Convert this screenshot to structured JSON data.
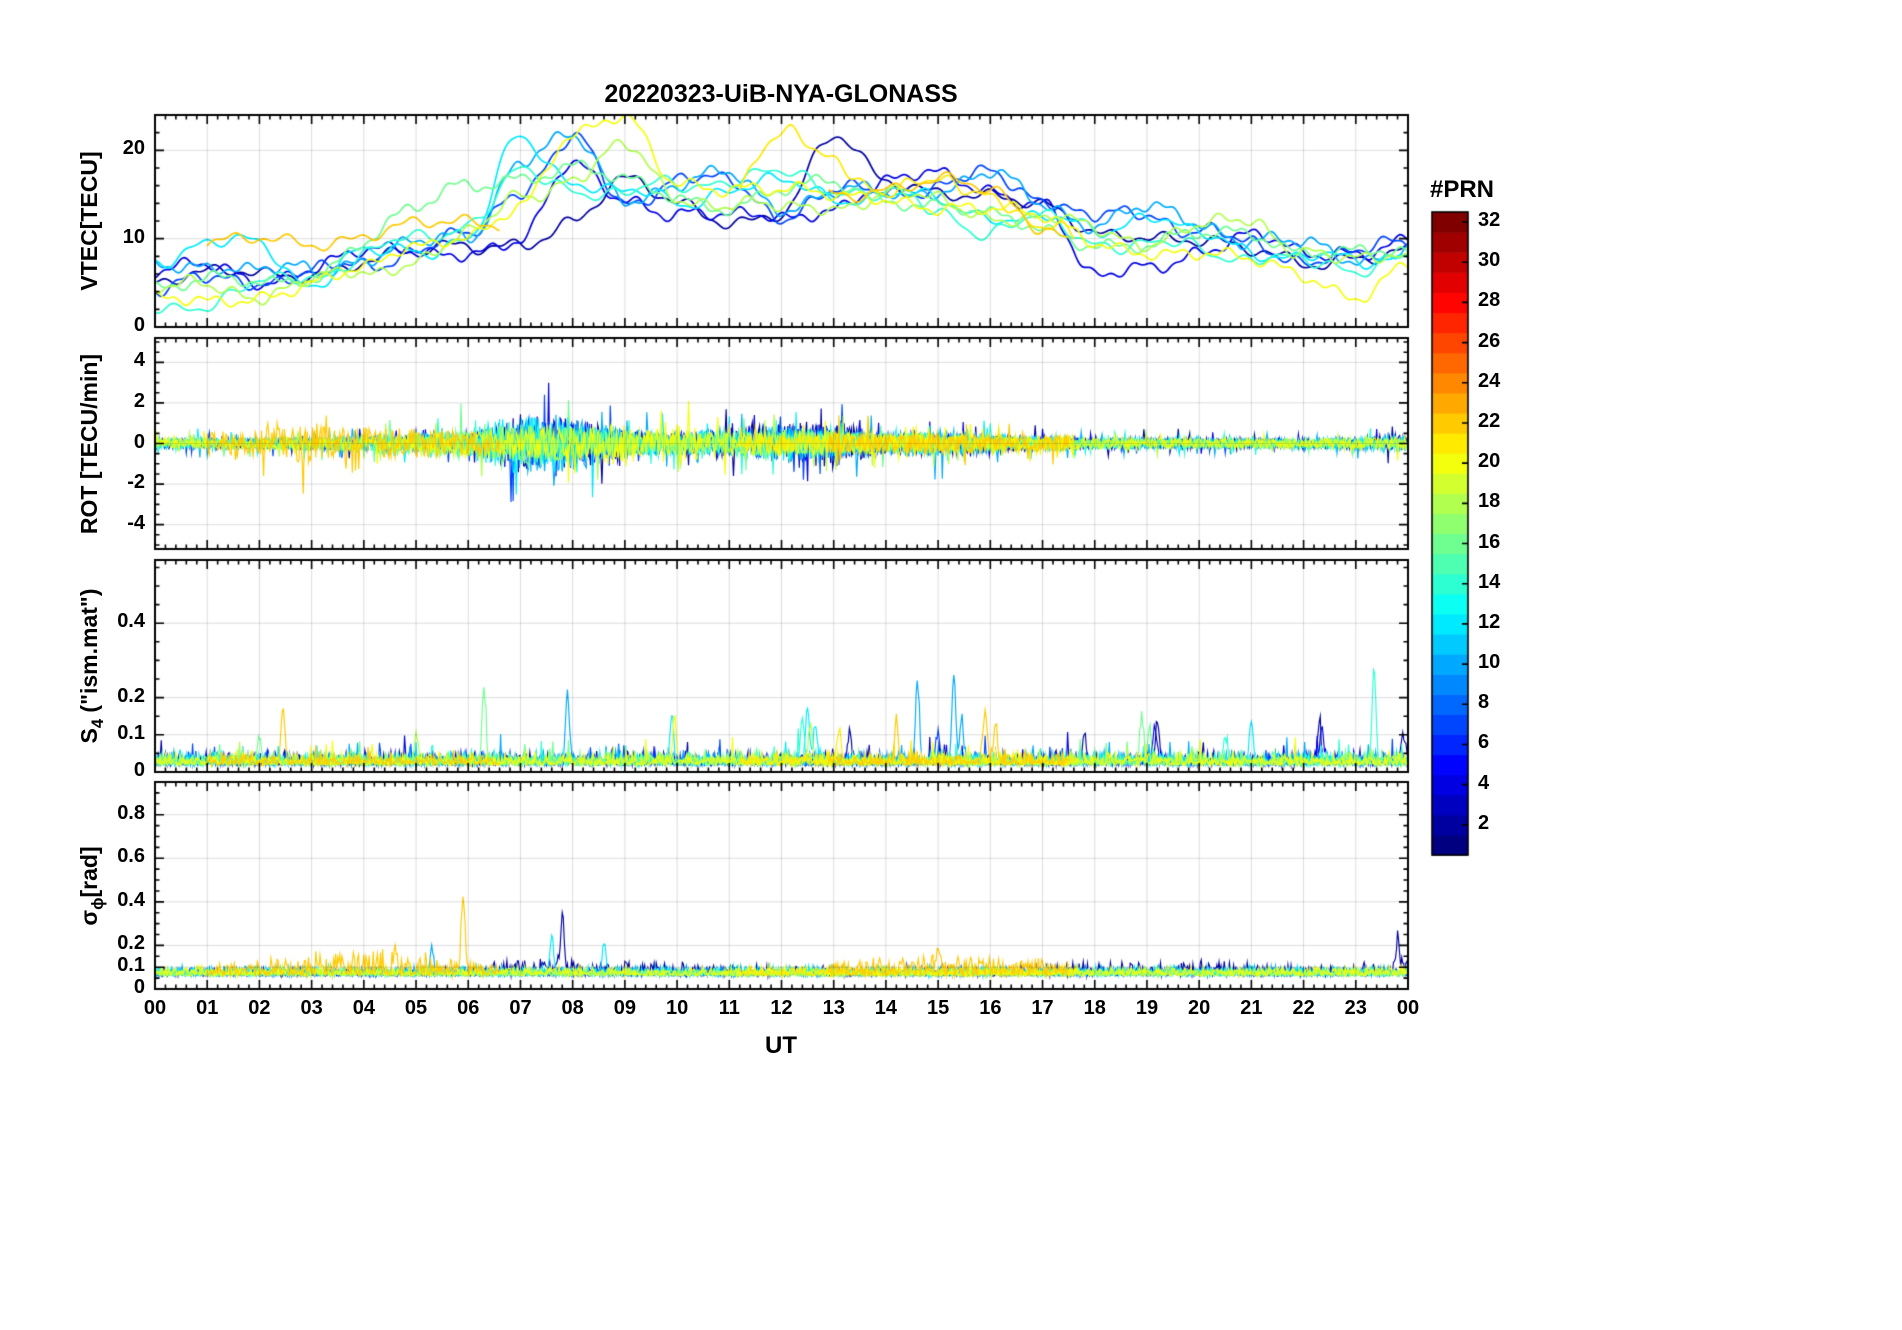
{
  "chart_data": {
    "type": "line",
    "title": "20220323-UiB-NYA-GLONASS",
    "xlabel": "UT",
    "xlim": [
      0,
      24
    ],
    "x_ticklabels": [
      "00",
      "01",
      "02",
      "03",
      "04",
      "05",
      "06",
      "07",
      "08",
      "09",
      "10",
      "11",
      "12",
      "13",
      "14",
      "15",
      "16",
      "17",
      "18",
      "19",
      "20",
      "21",
      "22",
      "23",
      "00"
    ],
    "grid": true,
    "colorbar": {
      "title": "#PRN",
      "colormap": "jet",
      "n_colors": 32,
      "range": [
        1,
        32
      ],
      "ticks": [
        2,
        4,
        6,
        8,
        10,
        12,
        14,
        16,
        18,
        20,
        22,
        24,
        26,
        28,
        30,
        32
      ]
    },
    "panels": [
      {
        "key": "vtec",
        "ylabel": {
          "main": "VTEC[TECU]",
          "sub": "",
          "rest": ""
        },
        "ylim": [
          0,
          24
        ],
        "yticks": [
          {
            "v": 0,
            "l": "0"
          },
          {
            "v": 10,
            "l": "10"
          },
          {
            "v": 20,
            "l": "20"
          }
        ],
        "minor": 2
      },
      {
        "key": "rot",
        "ylabel": {
          "main": "ROT [TECU/min]",
          "sub": "",
          "rest": ""
        },
        "ylim": [
          -5.2,
          5.2
        ],
        "yticks": [
          {
            "v": -4,
            "l": "-4"
          },
          {
            "v": -2,
            "l": "-2"
          },
          {
            "v": 0,
            "l": "0"
          },
          {
            "v": 2,
            "l": "2"
          },
          {
            "v": 4,
            "l": "4"
          }
        ],
        "minor": 0.5
      },
      {
        "key": "s4",
        "ylabel": {
          "main": "S",
          "sub": "4",
          "rest": " (\"ism.mat\")"
        },
        "ylim": [
          0,
          0.57
        ],
        "yticks": [
          {
            "v": 0,
            "l": "0"
          },
          {
            "v": 0.1,
            "l": "0.1"
          },
          {
            "v": 0.2,
            "l": "0.2"
          },
          {
            "v": 0.4,
            "l": "0.4"
          }
        ],
        "minor": 0.05,
        "base": 0.018,
        "amp": 0.035
      },
      {
        "key": "sigma_phi",
        "ylabel": {
          "main": "σ",
          "sub": "ϕ",
          "rest": "[rad]"
        },
        "ylim": [
          0,
          0.95
        ],
        "yticks": [
          {
            "v": 0,
            "l": "0"
          },
          {
            "v": 0.1,
            "l": "0.1"
          },
          {
            "v": 0.2,
            "l": "0.2"
          },
          {
            "v": 0.4,
            "l": "0.4"
          },
          {
            "v": 0.6,
            "l": "0.6"
          },
          {
            "v": 0.8,
            "l": "0.8"
          }
        ],
        "minor": 0.05,
        "base": 0.06
      }
    ],
    "x_hours": [
      0,
      1,
      2,
      3,
      4,
      5,
      6,
      7,
      8,
      9,
      10,
      11,
      12,
      13,
      14,
      15,
      16,
      17,
      18,
      19,
      20,
      21,
      22,
      23,
      24
    ],
    "series": [
      {
        "prn": 2,
        "segments": [
          [
            0,
            24
          ]
        ],
        "vtec": [
          5,
          5.5,
          6,
          6.5,
          7.5,
          8,
          9,
          10,
          12,
          16,
          14,
          12.5,
          13,
          21,
          16.5,
          16,
          15,
          13,
          10.5,
          11,
          10,
          8,
          7,
          8.5,
          9
        ],
        "rot_env": [
          0.4,
          0.4,
          0.4,
          0.5,
          0.5,
          0.6,
          0.7,
          2.6,
          2.2,
          1.2,
          1.0,
          1.2,
          1.8,
          2.2,
          0.9,
          1.0,
          0.8,
          0.6,
          0.4,
          0.5,
          0.5,
          0.4,
          0.4,
          0.5,
          0.8
        ],
        "s4_spikes": [
          [
            13.3,
            0.07
          ],
          [
            17.8,
            0.08
          ],
          [
            19.2,
            0.11
          ],
          [
            22.3,
            0.1
          ],
          [
            23.9,
            0.08
          ]
        ],
        "sp_amp": [
          0.04,
          0.04,
          0.04,
          0.04,
          0.04,
          0.04,
          0.05,
          0.1,
          0.09,
          0.08,
          0.08,
          0.06,
          0.05,
          0.05,
          0.05,
          0.05,
          0.05,
          0.07,
          0.08,
          0.08,
          0.08,
          0.07,
          0.05,
          0.06,
          0.1
        ],
        "sp_spikes": [
          [
            7.8,
            0.25
          ],
          [
            23.8,
            0.12
          ]
        ]
      },
      {
        "prn": 4,
        "segments": [
          [
            0,
            24
          ]
        ],
        "vtec": [
          6,
          6.5,
          5.5,
          7,
          8,
          8.5,
          9,
          9.5,
          18,
          15,
          13,
          12,
          12.5,
          14,
          16,
          17,
          16,
          14,
          5,
          7,
          9,
          10,
          8,
          9,
          10
        ],
        "rot_env": [
          0.4,
          0.4,
          0.4,
          0.4,
          0.5,
          0.5,
          0.6,
          1.8,
          2.4,
          1.0,
          0.8,
          0.9,
          1.4,
          1.6,
          0.8,
          0.9,
          0.7,
          0.5,
          0.4,
          0.4,
          0.4,
          0.4,
          0.4,
          0.4,
          0.6
        ],
        "s4_spikes": [
          [
            19.15,
            0.1
          ],
          [
            22.35,
            0.09
          ]
        ],
        "sp_amp": 0.04,
        "sp_spikes": []
      },
      {
        "prn": 7,
        "segments": [
          [
            0,
            24
          ]
        ],
        "vtec": [
          4.5,
          5,
          5.5,
          6,
          7,
          9,
          10,
          16,
          21,
          14,
          17,
          16,
          13,
          15,
          15.5,
          16,
          17,
          15,
          12,
          13,
          11,
          9,
          8,
          8,
          10
        ],
        "rot_env": [
          0.4,
          0.4,
          0.4,
          0.5,
          0.6,
          0.7,
          0.9,
          2.2,
          2.0,
          1.0,
          0.9,
          1.0,
          1.3,
          1.4,
          0.8,
          0.8,
          0.7,
          0.5,
          0.4,
          0.4,
          0.4,
          0.4,
          0.4,
          0.4,
          0.5
        ],
        "s4_spikes": [
          [
            15.0,
            0.08
          ]
        ],
        "sp_amp": 0.04,
        "sp_spikes": []
      },
      {
        "prn": 10,
        "segments": [
          [
            0,
            24
          ]
        ],
        "vtec": [
          7,
          7.5,
          6,
          6.5,
          8,
          9,
          10.5,
          19,
          21,
          15,
          16,
          17,
          14,
          15,
          15,
          16,
          17,
          14,
          12,
          13,
          12,
          10,
          9,
          8,
          9
        ],
        "rot_env": [
          0.5,
          0.5,
          0.5,
          0.5,
          0.6,
          0.7,
          1.0,
          2.4,
          2.6,
          1.2,
          1.0,
          1.0,
          1.5,
          1.3,
          0.9,
          1.4,
          0.8,
          0.6,
          0.4,
          0.5,
          0.4,
          0.4,
          0.4,
          0.5,
          0.7
        ],
        "s4_spikes": [
          [
            7.9,
            0.18
          ],
          [
            14.6,
            0.2
          ],
          [
            15.3,
            0.24
          ],
          [
            15.45,
            0.12
          ]
        ],
        "sp_amp": 0.05,
        "sp_spikes": [
          [
            5.3,
            0.1
          ]
        ]
      },
      {
        "prn": 12,
        "segments": [
          [
            0,
            24
          ]
        ],
        "vtec": [
          8,
          9,
          9.5,
          5,
          8,
          9,
          10,
          21,
          17,
          15,
          14,
          16,
          16,
          15,
          15,
          14,
          13,
          12,
          11,
          13,
          10,
          9,
          8,
          7,
          8.5
        ],
        "rot_env": [
          0.5,
          0.5,
          0.5,
          0.5,
          0.6,
          0.8,
          1.2,
          2.8,
          2.2,
          1.1,
          1.0,
          1.1,
          1.6,
          1.2,
          0.9,
          1.0,
          0.8,
          0.6,
          0.4,
          0.5,
          0.4,
          0.4,
          0.4,
          0.5,
          0.8
        ],
        "s4_spikes": [
          [
            9.9,
            0.13
          ],
          [
            12.5,
            0.14
          ],
          [
            12.65,
            0.1
          ],
          [
            21.0,
            0.11
          ]
        ],
        "sp_amp": 0.05,
        "sp_spikes": [
          [
            7.6,
            0.17
          ],
          [
            8.6,
            0.14
          ]
        ]
      },
      {
        "prn": 14,
        "segments": [
          [
            0,
            24
          ]
        ],
        "vtec": [
          2,
          3,
          4.5,
          6,
          8,
          10,
          12,
          17,
          16,
          15,
          16,
          17,
          17,
          16,
          15,
          13,
          11,
          12,
          10,
          9,
          9,
          8,
          7,
          7,
          8
        ],
        "rot_env": [
          0.4,
          0.4,
          0.4,
          0.5,
          0.6,
          0.8,
          1.0,
          1.8,
          1.6,
          1.0,
          0.9,
          1.0,
          1.2,
          1.1,
          0.8,
          0.8,
          0.7,
          0.5,
          0.4,
          0.4,
          0.4,
          0.4,
          0.4,
          0.5,
          0.6
        ],
        "s4_spikes": [
          [
            12.4,
            0.12
          ],
          [
            20.5,
            0.07
          ],
          [
            23.35,
            0.25
          ]
        ],
        "sp_amp": 0.04,
        "sp_spikes": []
      },
      {
        "prn": 16,
        "segments": [
          [
            0,
            24
          ]
        ],
        "vtec": [
          5,
          5,
          4.5,
          6,
          10,
          13,
          16,
          17.5,
          18,
          16,
          15,
          14,
          15,
          16,
          15,
          14,
          12,
          11,
          10,
          9,
          10,
          11,
          9,
          8,
          8
        ],
        "rot_env": [
          0.4,
          0.4,
          0.5,
          0.6,
          0.8,
          1.0,
          1.4,
          2.4,
          1.4,
          0.9,
          0.8,
          0.9,
          1.1,
          1.0,
          0.8,
          0.8,
          0.6,
          0.5,
          0.4,
          0.4,
          0.4,
          0.4,
          0.4,
          0.4,
          0.5
        ],
        "s4_spikes": [
          [
            2.0,
            0.06
          ],
          [
            6.3,
            0.2
          ],
          [
            18.9,
            0.12
          ],
          [
            19.05,
            0.09
          ]
        ],
        "sp_amp": 0.04,
        "sp_spikes": []
      },
      {
        "prn": 18,
        "segments": [
          [
            0,
            24
          ]
        ],
        "vtec": [
          4,
          4.5,
          4,
          5,
          6,
          8,
          10,
          15,
          17,
          20,
          15,
          14,
          13,
          14,
          15,
          14,
          13,
          12,
          11,
          10,
          11,
          12,
          9,
          7,
          8
        ],
        "rot_env": [
          0.4,
          0.4,
          0.4,
          0.5,
          0.6,
          0.8,
          1.2,
          1.6,
          1.4,
          1.2,
          1.0,
          0.9,
          1.1,
          1.0,
          0.8,
          0.8,
          0.6,
          0.5,
          0.4,
          0.4,
          0.4,
          0.4,
          0.4,
          0.4,
          0.5
        ],
        "s4_spikes": [
          [
            5.0,
            0.07
          ],
          [
            12.55,
            0.1
          ]
        ],
        "sp_amp": 0.04,
        "sp_spikes": []
      },
      {
        "prn": 20,
        "segments": [
          [
            0,
            24
          ]
        ],
        "vtec": [
          2.5,
          3,
          4,
          5,
          6,
          9,
          11,
          14,
          21,
          23.5,
          17,
          16,
          15,
          14.5,
          15,
          14,
          13,
          12,
          10,
          9,
          8,
          7,
          6,
          4,
          7
        ],
        "rot_env": [
          0.5,
          0.5,
          0.5,
          0.6,
          0.7,
          0.9,
          1.1,
          1.4,
          1.3,
          2.0,
          1.8,
          1.0,
          1.2,
          1.0,
          0.9,
          0.8,
          0.7,
          0.6,
          0.5,
          0.5,
          0.4,
          0.4,
          0.4,
          0.5,
          0.6
        ],
        "s4_spikes": [
          [
            9.95,
            0.12
          ]
        ],
        "sp_amp": 0.05,
        "sp_spikes": []
      },
      {
        "prn": 21,
        "segments": [
          [
            11.2,
            17.6
          ]
        ],
        "vtec": [
          16,
          16,
          16,
          16,
          16,
          16,
          16,
          16,
          16,
          16,
          16,
          16,
          21.5,
          19,
          15.5,
          16,
          15.5,
          11,
          9,
          9,
          9,
          9,
          9,
          9,
          9
        ],
        "rot_env": [
          0.7,
          0.7,
          0.7,
          0.7,
          0.7,
          0.7,
          0.7,
          0.7,
          0.7,
          0.7,
          0.7,
          0.7,
          0.7,
          0.7,
          0.7,
          0.7,
          0.7,
          0.7,
          0.7,
          0.7,
          0.7,
          0.7,
          0.7,
          0.7,
          0.7
        ],
        "s4_spikes": [
          [
            13.1,
            0.08
          ]
        ],
        "sp_amp": 0.05,
        "sp_spikes": []
      },
      {
        "prn": 22,
        "segments": [
          [
            1.0,
            6.6
          ],
          [
            12.9,
            17.5
          ]
        ],
        "vtec": [
          8.5,
          9,
          9.5,
          10,
          10.5,
          11,
          12,
          12.5,
          13,
          13.5,
          14,
          14.5,
          15,
          15.5,
          16,
          16,
          15.5,
          12,
          8,
          8,
          8,
          8,
          8,
          8,
          8
        ],
        "rot_env": [
          1.0,
          1.0,
          1.1,
          1.8,
          1.4,
          1.3,
          1.0,
          0.8,
          0.8,
          0.8,
          0.8,
          0.8,
          1.0,
          1.0,
          0.9,
          0.9,
          0.8,
          0.7,
          0.7,
          0.7,
          0.7,
          0.7,
          0.7,
          0.7,
          0.7
        ],
        "s4_spikes": [
          [
            2.45,
            0.15
          ],
          [
            14.2,
            0.11
          ],
          [
            15.9,
            0.14
          ],
          [
            16.1,
            0.1
          ]
        ],
        "sp_amp": [
          0.05,
          0.06,
          0.08,
          0.13,
          0.14,
          0.13,
          0.1,
          0.05,
          0.05,
          0.05,
          0.05,
          0.05,
          0.06,
          0.08,
          0.1,
          0.1,
          0.1,
          0.09,
          0.05,
          0.05,
          0.05,
          0.05,
          0.05,
          0.05,
          0.05
        ],
        "sp_spikes": [
          [
            4.6,
            0.1
          ],
          [
            5.9,
            0.34
          ],
          [
            15.0,
            0.12
          ]
        ]
      }
    ]
  }
}
